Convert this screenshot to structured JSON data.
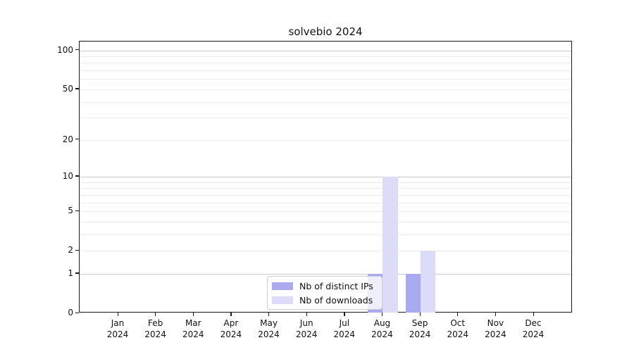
{
  "chart_data": {
    "type": "bar",
    "title": "solvebio 2024",
    "categories": [
      "Jan",
      "Feb",
      "Mar",
      "Apr",
      "May",
      "Jun",
      "Jul",
      "Aug",
      "Sep",
      "Oct",
      "Nov",
      "Dec"
    ],
    "x_year": "2024",
    "series": [
      {
        "name": "Nb of distinct IPs",
        "color": "#aaaaf0",
        "values": [
          0,
          0,
          0,
          0,
          0,
          0,
          0,
          1,
          1,
          0,
          0,
          0
        ]
      },
      {
        "name": "Nb of downloads",
        "color": "#dcdcf9",
        "values": [
          0,
          0,
          0,
          0,
          0,
          0,
          0,
          10,
          2,
          0,
          0,
          0
        ]
      }
    ],
    "xlabel": "",
    "ylabel": "",
    "yscale": "log1p",
    "ylim": [
      0,
      117
    ],
    "yticks": [
      0,
      1,
      2,
      5,
      10,
      20,
      50,
      100
    ],
    "grid_major": [
      1,
      10,
      100
    ],
    "grid_minor": [
      2,
      3,
      4,
      5,
      6,
      7,
      8,
      9,
      20,
      30,
      40,
      50,
      60,
      70,
      80,
      90
    ],
    "legend_position": "lower center",
    "colors": {
      "spine": "#1a1a1a",
      "grid_major": "#cbcbcb",
      "grid_minor": "#ececec",
      "background": "#ffffff"
    }
  }
}
